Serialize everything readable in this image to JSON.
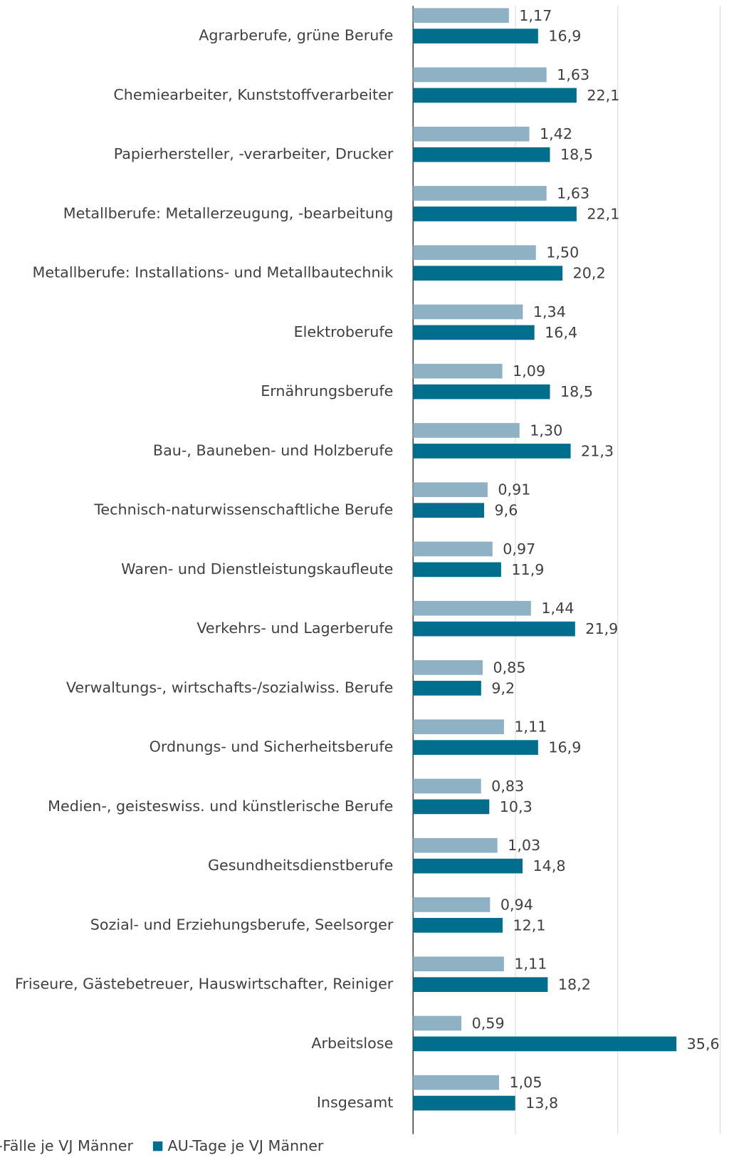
{
  "chart_data": {
    "type": "hbar",
    "categories": [
      "Agrarberufe, grüne Berufe",
      "Chemiearbeiter, Kunststoffverarbeiter",
      "Papierhersteller, -verarbeiter, Drucker",
      "Metallberufe: Metallerzeugung, -bearbeitung",
      "Metallberufe: Installations- und Metallbautechnik",
      "Elektroberufe",
      "Ernährungsberufe",
      "Bau-, Bauneben- und Holzberufe",
      "Technisch-naturwissenschaftliche Berufe",
      "Waren- und Dienstleistungskaufleute",
      "Verkehrs- und Lagerberufe",
      "Verwaltungs-, wirtschafts-/sozialwiss. Berufe",
      "Ordnungs- und Sicherheitsberufe",
      "Medien-, geisteswiss. und künstlerische Berufe",
      "Gesundheitsdienstberufe",
      "Sozial- und Erziehungsberufe, Seelsorger",
      "Friseure, Gästebetreuer, Hauswirtschafter, Reiniger",
      "Arbeitslose",
      "Insgesamt"
    ],
    "series": [
      {
        "name": "AU-Fälle je VJ Männer",
        "color": "#8fb1c4",
        "values": [
          1.17,
          1.63,
          1.42,
          1.63,
          1.5,
          1.34,
          1.09,
          1.3,
          0.91,
          0.97,
          1.44,
          0.85,
          1.11,
          0.83,
          1.03,
          0.94,
          1.11,
          0.59,
          1.05
        ],
        "value_labels": [
          "1,17",
          "1,63",
          "1,42",
          "1,63",
          "1,50",
          "1,34",
          "1,09",
          "1,30",
          "0,91",
          "0,97",
          "1,44",
          "0,85",
          "1,11",
          "0,83",
          "1,03",
          "0,94",
          "1,11",
          "0,59",
          "1,05"
        ]
      },
      {
        "name": "AU-Tage je VJ  Männer",
        "color": "#006e8c",
        "axis": "x2",
        "values": [
          16.9,
          22.1,
          18.5,
          22.1,
          20.2,
          16.4,
          18.5,
          21.3,
          9.6,
          11.9,
          21.9,
          9.2,
          16.9,
          10.3,
          14.8,
          12.1,
          18.2,
          35.6,
          13.8
        ],
        "value_labels": [
          "16,9",
          "22,1",
          "18,5",
          "22,1",
          "20,2",
          "16,4",
          "18,5",
          "21,3",
          "9,6",
          "11,9",
          "21,9",
          "9,2",
          "16,9",
          "10,3",
          "14,8",
          "12,1",
          "18,2",
          "35,6",
          "13,8"
        ]
      }
    ],
    "xlim": [
      0,
      3.75
    ],
    "xticks": [
      0,
      1.25,
      2.5,
      3.75
    ],
    "x2lim": [
      0,
      41.5
    ],
    "grid": true
  }
}
